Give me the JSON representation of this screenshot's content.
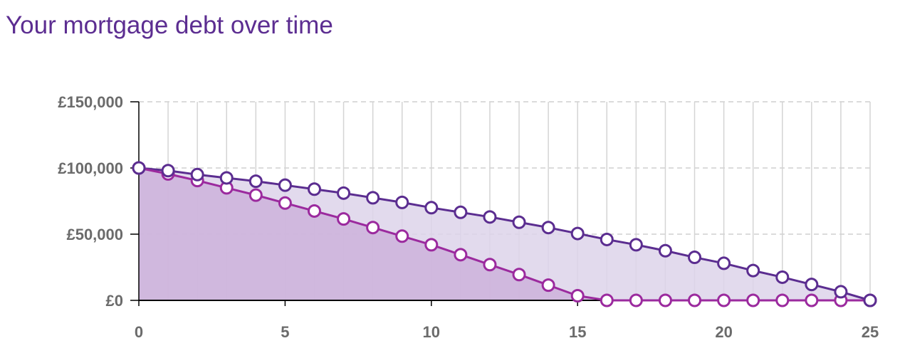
{
  "chart_data": {
    "type": "area",
    "title": "Your mortgage debt over time",
    "xlabel": "",
    "ylabel": "",
    "xlim": [
      0,
      25
    ],
    "ylim": [
      0,
      150000
    ],
    "x": [
      0,
      1,
      2,
      3,
      4,
      5,
      6,
      7,
      8,
      9,
      10,
      11,
      12,
      13,
      14,
      15,
      16,
      17,
      18,
      19,
      20,
      21,
      22,
      23,
      24,
      25
    ],
    "x_ticks": [
      {
        "value": 0,
        "label": "0"
      },
      {
        "value": 5,
        "label": "5"
      },
      {
        "value": 10,
        "label": "10"
      },
      {
        "value": 15,
        "label": "15"
      },
      {
        "value": 20,
        "label": "20"
      },
      {
        "value": 25,
        "label": "25"
      }
    ],
    "y_ticks": [
      {
        "value": 0,
        "label": "£0"
      },
      {
        "value": 50000,
        "label": "£50,000"
      },
      {
        "value": 100000,
        "label": "£100,000"
      },
      {
        "value": 150000,
        "label": "£150,000"
      }
    ],
    "grid": {
      "vertical_every_x": true,
      "horizontal_dashed": true
    },
    "legend": "none",
    "series": [
      {
        "values": [
          100000,
          98000,
          95000,
          92500,
          90000,
          87000,
          84000,
          81000,
          77500,
          74000,
          70000,
          66500,
          63000,
          59000,
          55000,
          50500,
          46000,
          42000,
          37500,
          32500,
          28000,
          22500,
          17500,
          12000,
          6500,
          0
        ],
        "line_color": "#5b2d90",
        "fill_color": "#ddd3ea"
      },
      {
        "values": [
          100000,
          95500,
          90500,
          85000,
          79500,
          73500,
          67500,
          61500,
          55000,
          48500,
          42000,
          34500,
          27000,
          19500,
          11500,
          3500,
          0,
          0,
          0,
          0,
          0,
          0,
          0,
          0,
          0,
          0
        ],
        "line_color": "#9b2a9e",
        "fill_color": "#cdb2da"
      }
    ]
  }
}
